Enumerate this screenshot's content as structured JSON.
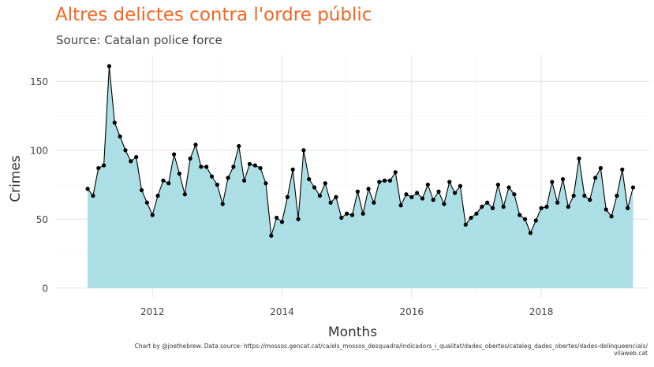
{
  "chart_data": {
    "type": "area",
    "title": "Altres delictes contra l'ordre públic",
    "subtitle": "Source: Catalan police force",
    "xlabel": "Months",
    "ylabel": "Crimes",
    "caption_line1": "Chart by @joethebrew. Data source: https://mossos.gencat.cat/ca/els_mossos_desquadra/indicadors_i_qualitat/dades_obertes/cataleg_dades_obertes/dades-delinqueencials/",
    "caption_line2": "vilaweb.cat",
    "x_start": "2011-01",
    "x_frequency": "monthly",
    "xlim": [
      "2010-07",
      "2019-09"
    ],
    "ylim": [
      -7,
      169
    ],
    "y_ticks": [
      0,
      50,
      100,
      150
    ],
    "x_ticks": [
      {
        "label": "2012",
        "date": "2012-01"
      },
      {
        "label": "2014",
        "date": "2014-01"
      },
      {
        "label": "2016",
        "date": "2016-01"
      },
      {
        "label": "2018",
        "date": "2018-01"
      }
    ],
    "grid": true,
    "legend": "none",
    "fill_color": "#abdfe5",
    "line_color": "#000000",
    "point_color": "#000000",
    "values": [
      72,
      67,
      87,
      89,
      161,
      120,
      110,
      100,
      92,
      95,
      71,
      62,
      53,
      67,
      78,
      76,
      97,
      83,
      68,
      94,
      104,
      88,
      88,
      81,
      75,
      61,
      80,
      88,
      103,
      78,
      90,
      89,
      87,
      76,
      38,
      51,
      48,
      66,
      86,
      50,
      100,
      79,
      73,
      67,
      76,
      62,
      66,
      51,
      54,
      53,
      70,
      54,
      72,
      62,
      77,
      78,
      78,
      84,
      60,
      68,
      66,
      69,
      65,
      75,
      64,
      70,
      61,
      77,
      69,
      74,
      46,
      51,
      54,
      59,
      62,
      58,
      75,
      59,
      73,
      68,
      53,
      50,
      40,
      49,
      58,
      59,
      77,
      62,
      79,
      59,
      67,
      94,
      67,
      64,
      80,
      87,
      57,
      52,
      67,
      86,
      58,
      73
    ]
  }
}
